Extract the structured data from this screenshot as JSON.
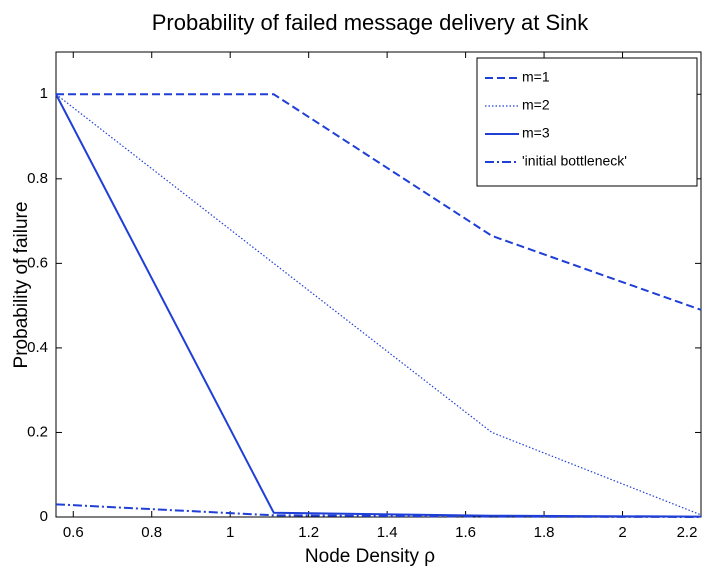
{
  "chart_data": {
    "type": "line",
    "title": "Probability of failed message delivery at Sink",
    "x_label": "Node Density  ρ",
    "y_label": "Probability of failure",
    "x": [
      0.556,
      1.111,
      1.667,
      2.2
    ],
    "series": [
      {
        "name": "m=1",
        "color": "#1f3fd6",
        "line_style": "dashed",
        "values": [
          1,
          1,
          0.665,
          0.49
        ]
      },
      {
        "name": "m=2",
        "color": "#1f3fd6",
        "line_style": "dotted",
        "values": [
          1,
          0.6,
          0.2,
          0.005
        ]
      },
      {
        "name": "m=3",
        "color": "#1f3fd6",
        "line_style": "solid",
        "values": [
          1,
          0.01,
          0.003,
          0.001
        ]
      },
      {
        "name": "'initial bottleneck'",
        "color": "#1f3fd6",
        "line_style": "dashdot",
        "values": [
          0.03,
          0.004,
          0.001,
          0
        ]
      }
    ],
    "xlim": [
      0.556,
      2.2
    ],
    "xticks": [
      0.6,
      0.8,
      1,
      1.2,
      1.4,
      1.6,
      1.8,
      2,
      2.2
    ],
    "ylim": [
      0,
      1.1
    ],
    "yticks": [
      0,
      0.2,
      0.4,
      0.6,
      0.8,
      1
    ],
    "legend": "northeast"
  }
}
